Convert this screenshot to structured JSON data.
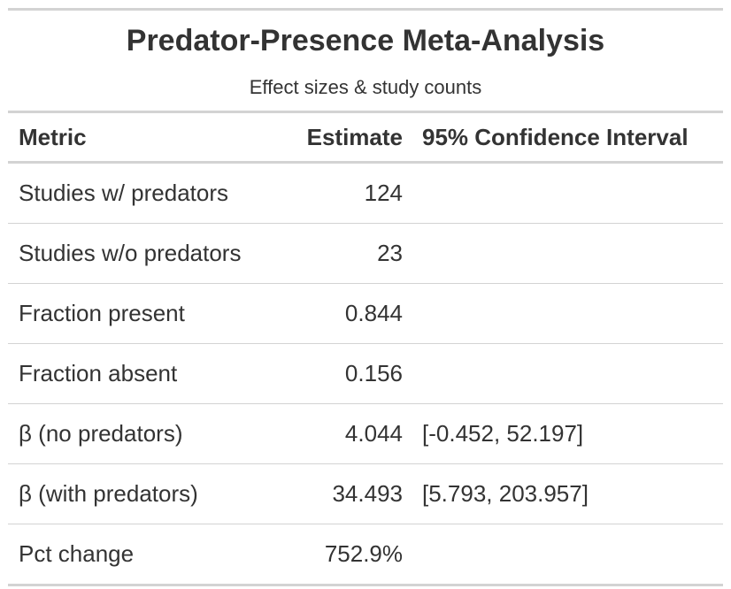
{
  "title": "Predator-Presence Meta-Analysis",
  "subtitle": "Effect sizes & study counts",
  "columns": {
    "metric": "Metric",
    "estimate": "Estimate",
    "ci": "95% Confidence Interval"
  },
  "rows": [
    {
      "metric": "Studies w/ predators",
      "estimate": "124",
      "ci": ""
    },
    {
      "metric": "Studies w/o predators",
      "estimate": "23",
      "ci": ""
    },
    {
      "metric": "Fraction present",
      "estimate": "0.844",
      "ci": ""
    },
    {
      "metric": "Fraction absent",
      "estimate": "0.156",
      "ci": ""
    },
    {
      "metric": "β (no predators)",
      "estimate": "4.044",
      "ci": "[-0.452, 52.197]"
    },
    {
      "metric": "β (with predators)",
      "estimate": "34.493",
      "ci": "[5.793, 203.957]"
    },
    {
      "metric": "Pct change",
      "estimate": "752.9%",
      "ci": ""
    }
  ]
}
